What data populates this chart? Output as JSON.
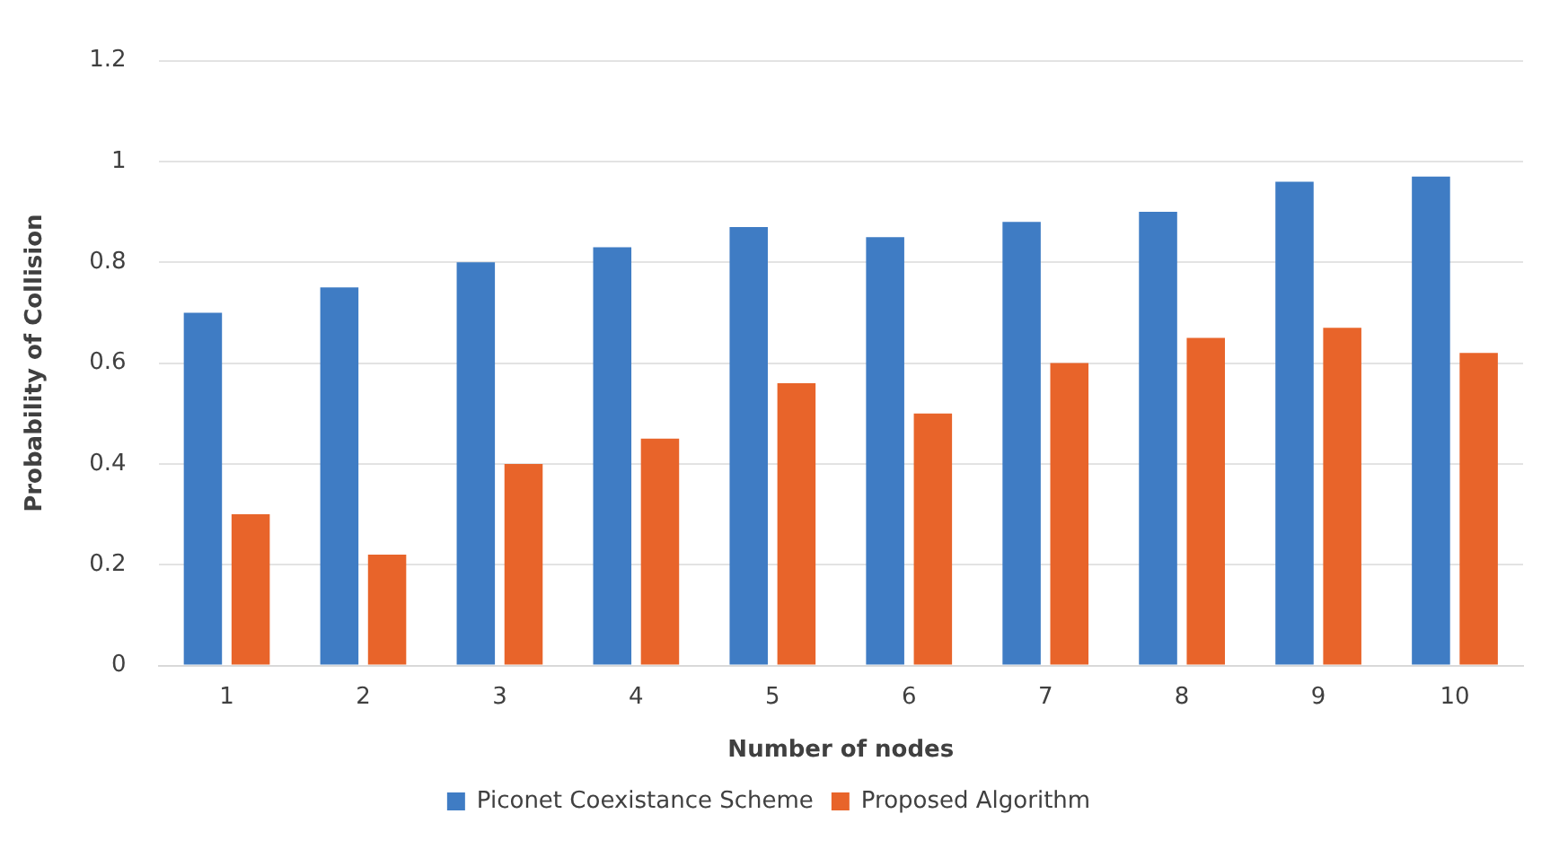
{
  "chart_data": {
    "type": "bar",
    "xlabel": "Number of nodes",
    "ylabel": "Probability of Collision",
    "categories": [
      "1",
      "2",
      "3",
      "4",
      "5",
      "6",
      "7",
      "8",
      "9",
      "10"
    ],
    "series": [
      {
        "name": "Piconet Coexistance Scheme",
        "color": "#3f7cc4",
        "values": [
          0.7,
          0.75,
          0.8,
          0.83,
          0.87,
          0.85,
          0.88,
          0.9,
          0.96,
          0.97
        ]
      },
      {
        "name": "Proposed Algorithm",
        "color": "#e8642a",
        "values": [
          0.3,
          0.22,
          0.4,
          0.45,
          0.56,
          0.5,
          0.6,
          0.65,
          0.67,
          0.62
        ]
      }
    ],
    "ylim": [
      0,
      1.2
    ],
    "yticks": [
      0,
      0.2,
      0.4,
      0.6,
      0.8,
      1,
      1.2
    ],
    "grid": "y",
    "legend": "bottom"
  }
}
